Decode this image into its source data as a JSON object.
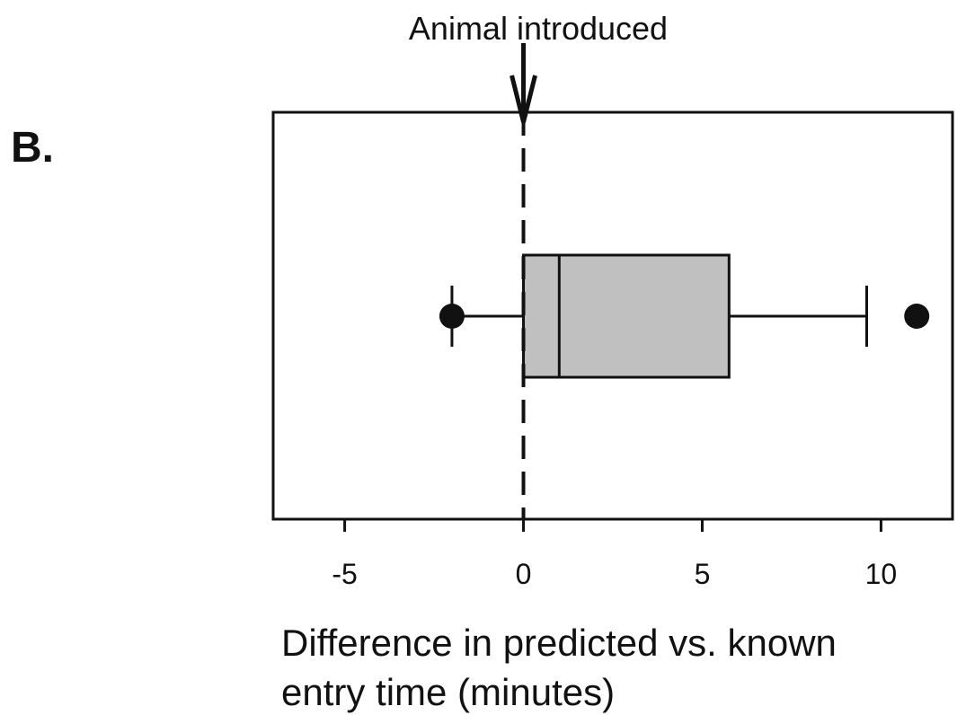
{
  "panel_label": "B.",
  "chart_data": {
    "type": "boxplot",
    "orientation": "horizontal",
    "annotation": "Animal introduced",
    "annotation_x": 0,
    "reference_line_x": 0,
    "xlabel_lines": [
      "Difference in predicted vs. known",
      "entry time (minutes)"
    ],
    "xlim": [
      -7,
      12
    ],
    "xticks": [
      -5,
      0,
      5,
      10
    ],
    "xtick_labels": [
      "-5",
      "0",
      "5",
      "10"
    ],
    "box": {
      "whisker_low": -2,
      "q1": 0,
      "median": 1,
      "q3": 5.75,
      "whisker_high": 9.6,
      "outliers": [
        -2,
        11
      ]
    },
    "box_fill": "#c0c0c0",
    "line_color": "#111111"
  }
}
